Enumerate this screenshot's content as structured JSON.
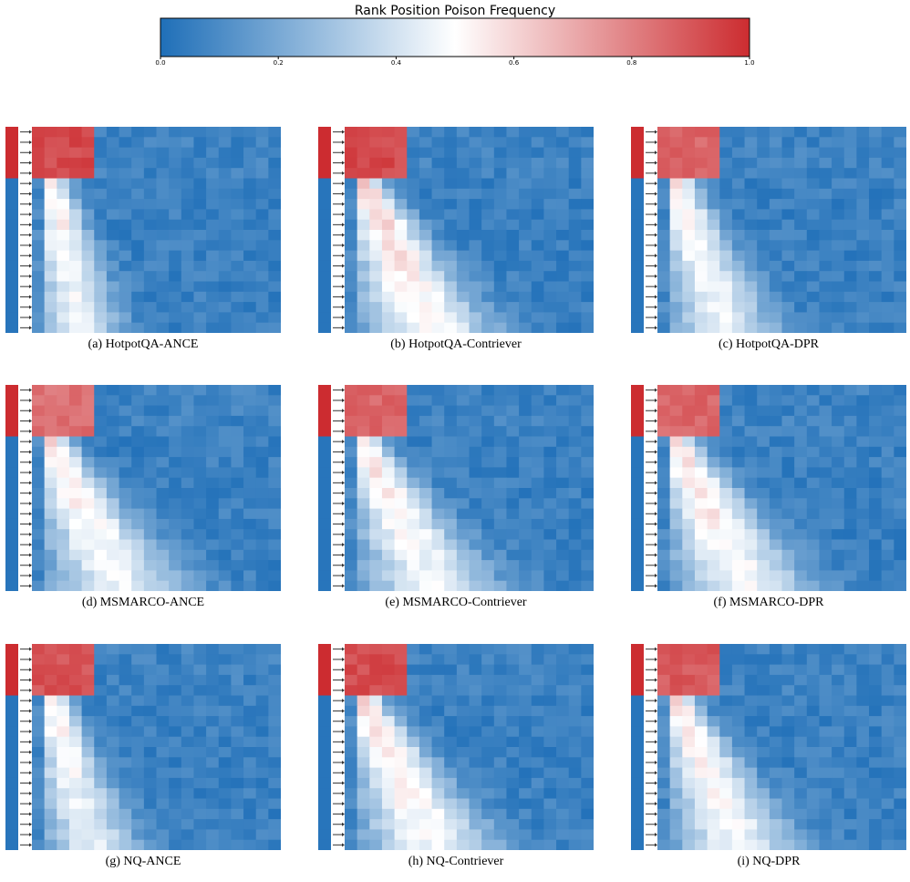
{
  "colorbar": {
    "title": "Rank Position Poison Frequency",
    "ticks": [
      "0.0",
      "0.2",
      "0.4",
      "0.6",
      "0.8",
      "1.0"
    ],
    "range": [
      0,
      1
    ],
    "colors": {
      "low": "#1f6fb8",
      "mid": "#ffffff",
      "high": "#cc2c30"
    }
  },
  "chart_data": [
    {
      "type": "heatmap",
      "caption": "(a) HotpotQA-ANCE",
      "seed": 11,
      "poison_rows": 5,
      "poison_cols": 5,
      "top_level": 0.97,
      "spread": 0.45,
      "peak": 0.5
    },
    {
      "type": "heatmap",
      "caption": "(b) HotpotQA-Contriever",
      "seed": 23,
      "poison_rows": 5,
      "poison_cols": 5,
      "top_level": 0.97,
      "spread": 0.95,
      "peak": 0.58
    },
    {
      "type": "heatmap",
      "caption": "(c) HotpotQA-DPR",
      "seed": 37,
      "poison_rows": 5,
      "poison_cols": 5,
      "top_level": 0.9,
      "spread": 0.7,
      "peak": 0.5
    },
    {
      "type": "heatmap",
      "caption": "(d) MSMARCO-ANCE",
      "seed": 41,
      "poison_rows": 5,
      "poison_cols": 5,
      "top_level": 0.88,
      "spread": 1.0,
      "peak": 0.52
    },
    {
      "type": "heatmap",
      "caption": "(e) MSMARCO-Contriever",
      "seed": 53,
      "poison_rows": 5,
      "poison_cols": 5,
      "top_level": 0.9,
      "spread": 1.0,
      "peak": 0.52
    },
    {
      "type": "heatmap",
      "caption": "(f) MSMARCO-DPR",
      "seed": 67,
      "poison_rows": 5,
      "poison_cols": 5,
      "top_level": 0.9,
      "spread": 1.0,
      "peak": 0.55
    },
    {
      "type": "heatmap",
      "caption": "(g) NQ-ANCE",
      "seed": 71,
      "poison_rows": 5,
      "poison_cols": 5,
      "top_level": 0.95,
      "spread": 0.6,
      "peak": 0.48
    },
    {
      "type": "heatmap",
      "caption": "(h) NQ-Contriever",
      "seed": 83,
      "poison_rows": 5,
      "poison_cols": 5,
      "top_level": 0.96,
      "spread": 1.0,
      "peak": 0.55
    },
    {
      "type": "heatmap",
      "caption": "(i) NQ-DPR",
      "seed": 97,
      "poison_rows": 5,
      "poison_cols": 5,
      "top_level": 0.93,
      "spread": 0.9,
      "peak": 0.52
    }
  ]
}
